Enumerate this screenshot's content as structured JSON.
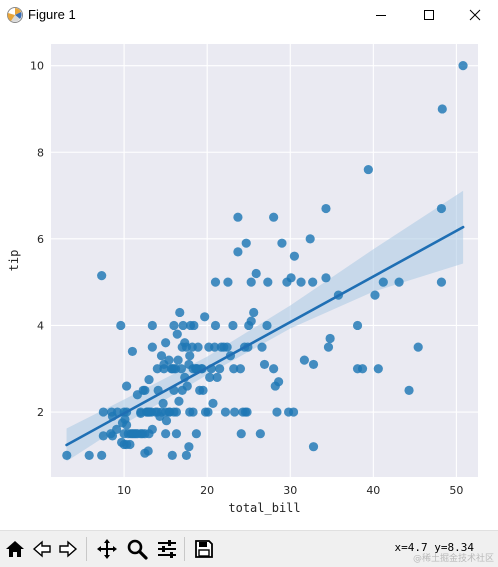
{
  "window": {
    "title": "Figure 1",
    "controls": [
      "minimize",
      "maximize",
      "close"
    ]
  },
  "toolbar": {
    "buttons": [
      "home-icon",
      "back-icon",
      "forward-icon",
      "pan-icon",
      "zoom-icon",
      "configure-subplots-icon",
      "save-icon"
    ],
    "coords_text": "x=4.7 y=8.34"
  },
  "watermark": "@稀土掘金技术社区",
  "chart_data": {
    "type": "scatter",
    "xlabel": "total_bill",
    "ylabel": "tip",
    "xlim": [
      1.2,
      52.6
    ],
    "ylim": [
      0.5,
      10.5
    ],
    "xticks": [
      10,
      20,
      30,
      40,
      50
    ],
    "yticks": [
      2,
      4,
      6,
      8,
      10
    ],
    "grid": true,
    "background": "#eaeaf2",
    "point_color": "#1f77b4",
    "line_color": "#1f6fb4",
    "band_color": "#aac8e4",
    "points": [
      [
        3.1,
        1.0
      ],
      [
        5.8,
        1.0
      ],
      [
        7.3,
        1.0
      ],
      [
        7.3,
        5.15
      ],
      [
        7.5,
        2.0
      ],
      [
        7.5,
        1.45
      ],
      [
        8.4,
        1.5
      ],
      [
        8.5,
        2.0
      ],
      [
        8.6,
        1.45
      ],
      [
        8.6,
        1.9
      ],
      [
        9.1,
        1.6
      ],
      [
        9.2,
        2.0
      ],
      [
        9.6,
        4.0
      ],
      [
        9.7,
        1.3
      ],
      [
        9.8,
        1.75
      ],
      [
        10.0,
        1.5
      ],
      [
        10.0,
        2.0
      ],
      [
        10.0,
        1.25
      ],
      [
        10.1,
        1.83
      ],
      [
        10.3,
        1.25
      ],
      [
        10.3,
        2.0
      ],
      [
        10.3,
        2.6
      ],
      [
        10.3,
        1.7
      ],
      [
        10.5,
        1.5
      ],
      [
        10.7,
        1.25
      ],
      [
        10.8,
        1.5
      ],
      [
        11.0,
        1.5
      ],
      [
        11.0,
        3.4
      ],
      [
        11.2,
        1.5
      ],
      [
        11.4,
        1.5
      ],
      [
        11.6,
        1.5
      ],
      [
        11.6,
        2.4
      ],
      [
        12.0,
        1.5
      ],
      [
        12.0,
        2.0
      ],
      [
        12.0,
        1.97
      ],
      [
        12.2,
        1.5
      ],
      [
        12.3,
        2.5
      ],
      [
        12.5,
        1.5
      ],
      [
        12.5,
        2.5
      ],
      [
        12.5,
        1.05
      ],
      [
        12.7,
        2.0
      ],
      [
        12.8,
        2.0
      ],
      [
        12.9,
        1.1
      ],
      [
        12.9,
        2.0
      ],
      [
        13.0,
        2.0
      ],
      [
        13.0,
        1.5
      ],
      [
        13.0,
        2.75
      ],
      [
        13.1,
        2.0
      ],
      [
        13.3,
        2.0
      ],
      [
        13.4,
        3.5
      ],
      [
        13.4,
        4.0
      ],
      [
        13.4,
        1.6
      ],
      [
        13.8,
        2.0
      ],
      [
        14.0,
        2.0
      ],
      [
        14.0,
        3.0
      ],
      [
        14.1,
        2.5
      ],
      [
        14.3,
        1.9
      ],
      [
        14.5,
        2.0
      ],
      [
        14.5,
        3.3
      ],
      [
        14.7,
        2.2
      ],
      [
        14.8,
        3.0
      ],
      [
        14.8,
        3.1
      ],
      [
        15.0,
        2.0
      ],
      [
        15.0,
        1.5
      ],
      [
        15.0,
        3.6
      ],
      [
        15.1,
        1.8
      ],
      [
        15.4,
        3.2
      ],
      [
        15.4,
        2.0
      ],
      [
        15.5,
        2.0
      ],
      [
        15.7,
        3.0
      ],
      [
        15.8,
        1.0
      ],
      [
        15.8,
        3.0
      ],
      [
        16.0,
        2.0
      ],
      [
        16.0,
        3.0
      ],
      [
        16.0,
        2.5
      ],
      [
        16.0,
        4.0
      ],
      [
        16.2,
        3.0
      ],
      [
        16.3,
        2.0
      ],
      [
        16.3,
        1.5
      ],
      [
        16.4,
        3.8
      ],
      [
        16.5,
        3.2
      ],
      [
        16.6,
        2.25
      ],
      [
        16.7,
        4.3
      ],
      [
        16.9,
        3.0
      ],
      [
        17.0,
        3.5
      ],
      [
        17.0,
        2.5
      ],
      [
        17.1,
        4.0
      ],
      [
        17.3,
        3.6
      ],
      [
        17.3,
        2.8
      ],
      [
        17.5,
        3.5
      ],
      [
        17.5,
        1.0
      ],
      [
        17.6,
        2.6
      ],
      [
        17.8,
        3.1
      ],
      [
        17.8,
        1.2
      ],
      [
        17.9,
        2.0
      ],
      [
        17.9,
        3.3
      ],
      [
        18.0,
        4.0
      ],
      [
        18.2,
        3.5
      ],
      [
        18.3,
        3.0
      ],
      [
        18.3,
        2.0
      ],
      [
        18.4,
        4.0
      ],
      [
        18.6,
        3.0
      ],
      [
        18.7,
        3.0
      ],
      [
        18.7,
        1.5
      ],
      [
        18.8,
        3.0
      ],
      [
        18.9,
        3.5
      ],
      [
        19.1,
        2.5
      ],
      [
        19.3,
        3.0
      ],
      [
        19.4,
        3.0
      ],
      [
        19.5,
        2.5
      ],
      [
        19.7,
        4.2
      ],
      [
        19.8,
        2.0
      ],
      [
        20.1,
        2.0
      ],
      [
        20.2,
        3.5
      ],
      [
        20.3,
        2.8
      ],
      [
        20.5,
        3.0
      ],
      [
        20.7,
        2.2
      ],
      [
        20.9,
        3.5
      ],
      [
        21.0,
        4.0
      ],
      [
        21.0,
        5.0
      ],
      [
        21.2,
        2.8
      ],
      [
        21.5,
        3.0
      ],
      [
        21.7,
        3.5
      ],
      [
        22.0,
        3.5
      ],
      [
        22.2,
        2.0
      ],
      [
        22.4,
        3.5
      ],
      [
        22.5,
        5.0
      ],
      [
        22.8,
        3.3
      ],
      [
        23.1,
        4.0
      ],
      [
        23.2,
        3.0
      ],
      [
        23.3,
        2.0
      ],
      [
        23.7,
        5.7
      ],
      [
        23.7,
        6.5
      ],
      [
        24.0,
        3.0
      ],
      [
        24.1,
        1.5
      ],
      [
        24.3,
        2.0
      ],
      [
        24.5,
        3.5
      ],
      [
        24.6,
        2.0
      ],
      [
        24.7,
        5.9
      ],
      [
        24.8,
        2.0
      ],
      [
        24.9,
        3.5
      ],
      [
        25.0,
        4.0
      ],
      [
        25.3,
        4.1
      ],
      [
        25.3,
        5.0
      ],
      [
        25.6,
        4.3
      ],
      [
        25.9,
        5.2
      ],
      [
        26.4,
        1.5
      ],
      [
        26.6,
        3.5
      ],
      [
        26.9,
        3.1
      ],
      [
        27.2,
        4.0
      ],
      [
        27.3,
        5.0
      ],
      [
        28.0,
        3.0
      ],
      [
        28.0,
        6.5
      ],
      [
        28.2,
        2.6
      ],
      [
        28.4,
        2.0
      ],
      [
        28.6,
        2.7
      ],
      [
        29.0,
        5.9
      ],
      [
        29.6,
        5.0
      ],
      [
        29.8,
        2.0
      ],
      [
        30.1,
        5.1
      ],
      [
        30.4,
        2.0
      ],
      [
        30.5,
        5.6
      ],
      [
        31.3,
        5.0
      ],
      [
        31.7,
        3.2
      ],
      [
        32.4,
        6.0
      ],
      [
        32.7,
        5.0
      ],
      [
        32.8,
        3.1
      ],
      [
        32.8,
        1.2
      ],
      [
        34.3,
        6.7
      ],
      [
        34.3,
        5.1
      ],
      [
        34.6,
        3.5
      ],
      [
        34.8,
        3.7
      ],
      [
        35.8,
        4.7
      ],
      [
        38.1,
        4.0
      ],
      [
        38.1,
        3.0
      ],
      [
        38.7,
        3.0
      ],
      [
        39.4,
        7.6
      ],
      [
        40.2,
        4.7
      ],
      [
        40.6,
        3.0
      ],
      [
        41.2,
        5.0
      ],
      [
        43.1,
        5.0
      ],
      [
        44.3,
        2.5
      ],
      [
        45.4,
        3.5
      ],
      [
        48.2,
        5.0
      ],
      [
        48.2,
        6.7
      ],
      [
        48.3,
        9.0
      ],
      [
        50.8,
        10.0
      ]
    ],
    "regression": {
      "x_start": 3.07,
      "y_start": 1.24,
      "x_end": 50.81,
      "y_end": 6.27
    },
    "confidence_band": {
      "x": [
        3.07,
        10.0,
        20.0,
        30.0,
        40.0,
        50.81
      ],
      "lower": [
        0.86,
        1.72,
        2.86,
        3.93,
        4.78,
        5.43
      ],
      "upper": [
        1.62,
        2.29,
        3.28,
        4.46,
        5.76,
        7.11
      ]
    }
  }
}
